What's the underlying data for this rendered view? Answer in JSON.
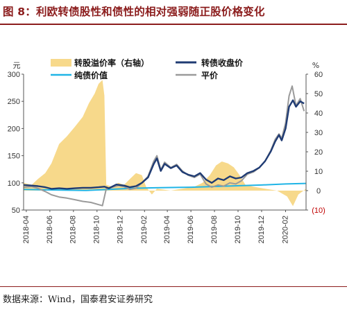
{
  "title": "图 8：利欧转债股性和债性的相对强弱随正股价格变化",
  "source": "数据来源：Wind，国泰君安证券研究",
  "chart_data": {
    "type": "line",
    "left_unit": "元",
    "right_unit": "%",
    "y_left": {
      "min": 50,
      "max": 300,
      "ticks": [
        "50",
        "100",
        "150",
        "200",
        "250",
        "300"
      ]
    },
    "y_right": {
      "min": -10,
      "max": 60,
      "ticks": [
        "(10)",
        "0",
        "10",
        "20",
        "30",
        "40",
        "50",
        "60"
      ]
    },
    "x_ticks": [
      "2018-04",
      "2018-06",
      "2018-08",
      "2018-10",
      "2018-12",
      "2019-02",
      "2019-04",
      "2019-06",
      "2019-08",
      "2019-10",
      "2019-12",
      "2020-02"
    ],
    "x_range": [
      "2018-03-25",
      "2020-03-25"
    ],
    "grid": false,
    "legend": "top",
    "colors": {
      "premium": "#f7d98b",
      "close": "#1f3b73",
      "bond": "#1fb4e6",
      "parity": "#9a9a9a"
    },
    "series": [
      {
        "name": "转股溢价率（右轴）",
        "axis": "right",
        "kind": "area",
        "points": [
          [
            "2018-03-25",
            4
          ],
          [
            "2018-04-15",
            3
          ],
          [
            "2018-05-01",
            6
          ],
          [
            "2018-05-20",
            9
          ],
          [
            "2018-06-05",
            14
          ],
          [
            "2018-06-25",
            24
          ],
          [
            "2018-07-15",
            28
          ],
          [
            "2018-08-05",
            33
          ],
          [
            "2018-08-25",
            38
          ],
          [
            "2018-09-10",
            45
          ],
          [
            "2018-09-25",
            50
          ],
          [
            "2018-10-05",
            55
          ],
          [
            "2018-10-15",
            57
          ],
          [
            "2018-10-20",
            49
          ],
          [
            "2018-10-25",
            3
          ],
          [
            "2018-11-10",
            2
          ],
          [
            "2018-11-25",
            4
          ],
          [
            "2018-12-10",
            3
          ],
          [
            "2018-12-25",
            6
          ],
          [
            "2019-01-10",
            9
          ],
          [
            "2019-01-25",
            8
          ],
          [
            "2019-02-05",
            2
          ],
          [
            "2019-02-20",
            -2
          ],
          [
            "2019-03-05",
            1
          ],
          [
            "2019-04-10",
            0
          ],
          [
            "2019-05-10",
            1
          ],
          [
            "2019-06-10",
            2
          ],
          [
            "2019-07-01",
            4
          ],
          [
            "2019-07-20",
            8
          ],
          [
            "2019-08-05",
            13
          ],
          [
            "2019-08-20",
            15
          ],
          [
            "2019-09-05",
            14
          ],
          [
            "2019-09-20",
            12
          ],
          [
            "2019-10-05",
            8
          ],
          [
            "2019-10-20",
            3
          ],
          [
            "2019-11-10",
            2
          ],
          [
            "2019-12-10",
            1
          ],
          [
            "2020-01-10",
            0
          ],
          [
            "2020-02-05",
            -3
          ],
          [
            "2020-02-20",
            -8
          ],
          [
            "2020-03-05",
            -2
          ],
          [
            "2020-03-25",
            1
          ]
        ]
      },
      {
        "name": "转债收盘价",
        "axis": "left",
        "kind": "line",
        "points": [
          [
            "2018-03-25",
            96
          ],
          [
            "2018-04-15",
            95
          ],
          [
            "2018-05-01",
            94
          ],
          [
            "2018-05-20",
            92
          ],
          [
            "2018-06-05",
            89
          ],
          [
            "2018-06-25",
            90
          ],
          [
            "2018-07-15",
            89
          ],
          [
            "2018-08-05",
            90
          ],
          [
            "2018-08-25",
            91
          ],
          [
            "2018-09-15",
            91
          ],
          [
            "2018-10-05",
            92
          ],
          [
            "2018-10-20",
            93
          ],
          [
            "2018-11-01",
            90
          ],
          [
            "2018-11-20",
            97
          ],
          [
            "2018-12-10",
            95
          ],
          [
            "2018-12-25",
            92
          ],
          [
            "2019-01-10",
            94
          ],
          [
            "2019-01-25",
            100
          ],
          [
            "2019-02-10",
            110
          ],
          [
            "2019-02-25",
            135
          ],
          [
            "2019-03-05",
            145
          ],
          [
            "2019-03-15",
            122
          ],
          [
            "2019-03-25",
            135
          ],
          [
            "2019-04-10",
            127
          ],
          [
            "2019-04-25",
            132
          ],
          [
            "2019-05-10",
            120
          ],
          [
            "2019-05-25",
            115
          ],
          [
            "2019-06-10",
            112
          ],
          [
            "2019-06-25",
            118
          ],
          [
            "2019-07-10",
            106
          ],
          [
            "2019-07-25",
            100
          ],
          [
            "2019-08-10",
            108
          ],
          [
            "2019-08-25",
            105
          ],
          [
            "2019-09-10",
            112
          ],
          [
            "2019-09-25",
            108
          ],
          [
            "2019-10-10",
            110
          ],
          [
            "2019-10-25",
            118
          ],
          [
            "2019-11-10",
            122
          ],
          [
            "2019-11-25",
            128
          ],
          [
            "2019-12-10",
            140
          ],
          [
            "2019-12-25",
            158
          ],
          [
            "2020-01-05",
            176
          ],
          [
            "2020-01-15",
            188
          ],
          [
            "2020-01-22",
            178
          ],
          [
            "2020-02-01",
            200
          ],
          [
            "2020-02-10",
            240
          ],
          [
            "2020-02-20",
            252
          ],
          [
            "2020-02-28",
            240
          ],
          [
            "2020-03-10",
            250
          ],
          [
            "2020-03-20",
            246
          ]
        ]
      },
      {
        "name": "纯债价值",
        "axis": "left",
        "kind": "line",
        "points": [
          [
            "2018-03-25",
            88
          ],
          [
            "2018-06-01",
            87
          ],
          [
            "2018-09-01",
            86
          ],
          [
            "2018-11-01",
            88
          ],
          [
            "2019-01-01",
            90
          ],
          [
            "2019-03-01",
            91
          ],
          [
            "2019-06-01",
            92
          ],
          [
            "2019-09-01",
            94
          ],
          [
            "2019-12-01",
            96
          ],
          [
            "2020-02-01",
            98
          ],
          [
            "2020-03-25",
            99
          ]
        ]
      },
      {
        "name": "平价",
        "axis": "left",
        "kind": "line",
        "points": [
          [
            "2018-03-25",
            92
          ],
          [
            "2018-04-15",
            93
          ],
          [
            "2018-05-01",
            90
          ],
          [
            "2018-05-20",
            84
          ],
          [
            "2018-06-05",
            78
          ],
          [
            "2018-06-25",
            74
          ],
          [
            "2018-07-15",
            72
          ],
          [
            "2018-08-05",
            69
          ],
          [
            "2018-08-25",
            66
          ],
          [
            "2018-09-15",
            64
          ],
          [
            "2018-10-05",
            60
          ],
          [
            "2018-10-15",
            58
          ],
          [
            "2018-10-25",
            89
          ],
          [
            "2018-11-10",
            92
          ],
          [
            "2018-11-25",
            95
          ],
          [
            "2018-12-10",
            93
          ],
          [
            "2018-12-25",
            88
          ],
          [
            "2019-01-10",
            90
          ],
          [
            "2019-01-25",
            100
          ],
          [
            "2019-02-10",
            112
          ],
          [
            "2019-02-25",
            140
          ],
          [
            "2019-03-05",
            150
          ],
          [
            "2019-03-15",
            124
          ],
          [
            "2019-03-25",
            138
          ],
          [
            "2019-04-10",
            128
          ],
          [
            "2019-04-25",
            134
          ],
          [
            "2019-05-10",
            122
          ],
          [
            "2019-05-25",
            114
          ],
          [
            "2019-06-10",
            110
          ],
          [
            "2019-06-25",
            116
          ],
          [
            "2019-07-10",
            98
          ],
          [
            "2019-07-25",
            92
          ],
          [
            "2019-08-10",
            96
          ],
          [
            "2019-08-25",
            94
          ],
          [
            "2019-09-10",
            100
          ],
          [
            "2019-09-25",
            98
          ],
          [
            "2019-10-10",
            104
          ],
          [
            "2019-10-25",
            116
          ],
          [
            "2019-11-10",
            120
          ],
          [
            "2019-11-25",
            128
          ],
          [
            "2019-12-10",
            140
          ],
          [
            "2019-12-25",
            160
          ],
          [
            "2020-01-05",
            180
          ],
          [
            "2020-01-15",
            190
          ],
          [
            "2020-01-22",
            182
          ],
          [
            "2020-02-01",
            210
          ],
          [
            "2020-02-10",
            260
          ],
          [
            "2020-02-18",
            278
          ],
          [
            "2020-02-28",
            242
          ],
          [
            "2020-03-10",
            255
          ],
          [
            "2020-03-20",
            232
          ]
        ]
      }
    ]
  }
}
